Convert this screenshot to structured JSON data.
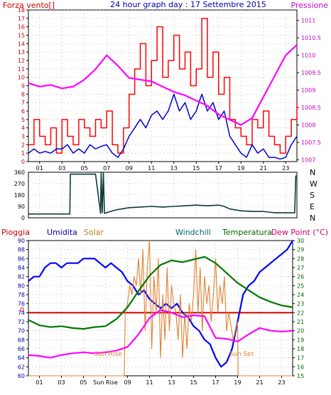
{
  "header": {
    "left_label": "Forza vento[]",
    "title": "24 hour graph day : 17 Settembre 2015",
    "right_label": "Pressione"
  },
  "colors": {
    "wind": "#ff0000",
    "wind_avg": "#0000cc",
    "pressure": "#ff00ff",
    "direction": "#0e3b3b",
    "rain": "#cc0000",
    "humidity": "#0000ff",
    "solar": "#e08030",
    "windchill": "#008800",
    "temperature": "#007700",
    "dewpoint": "#ff00ff",
    "axis_left": "#cc0000",
    "axis_right": "#cc00cc",
    "grid": "#999999",
    "frame": "#000000",
    "title": "#0000aa"
  },
  "x_ticks": [
    "01",
    "03",
    "05",
    "07",
    "09",
    "11",
    "13",
    "15",
    "17",
    "19",
    "21",
    "23"
  ],
  "bottom_x_ticks": [
    "01",
    "03",
    "05",
    "Sun Rise",
    "09",
    "11",
    "13",
    "15",
    "17",
    "19",
    "21",
    "23"
  ],
  "chart_data": [
    {
      "type": "line",
      "panel": "wind_pressure",
      "y_left_label": "Forza vento[]",
      "y_left_ticks": [
        "0",
        "1",
        "2",
        "3",
        "4",
        "5",
        "6",
        "7",
        "8",
        "9",
        "10",
        "11",
        "12",
        "13",
        "14",
        "15",
        "16",
        "17",
        "18"
      ],
      "y_left_range": [
        0,
        18
      ],
      "y_right_label": "Pressione",
      "y_right_ticks": [
        "1007",
        "1007.5",
        "1008",
        "1008.5",
        "1009",
        "1009.5",
        "1010",
        "1010.5",
        "1011"
      ],
      "y_right_range": [
        1006.95,
        1011.3
      ],
      "x_range": [
        0,
        24
      ],
      "series": [
        {
          "name": "Forza vento",
          "axis": "left",
          "style": "step",
          "x": [
            0,
            0.5,
            1,
            1.5,
            2,
            2.5,
            3,
            3.5,
            4,
            4.5,
            5,
            5.5,
            6,
            6.5,
            7,
            7.5,
            8,
            8.5,
            9,
            9.5,
            10,
            10.5,
            11,
            11.5,
            12,
            12.5,
            13,
            13.5,
            14,
            14.5,
            15,
            15.5,
            16,
            16.5,
            17,
            17.5,
            18,
            18.5,
            19,
            19.5,
            20,
            20.5,
            21,
            21.5,
            22,
            22.5,
            23,
            23.5,
            24
          ],
          "y": [
            2,
            5,
            3,
            2,
            4,
            1,
            5,
            3,
            2,
            5,
            4,
            3,
            5,
            4,
            6,
            2,
            1,
            4,
            8,
            11,
            14,
            9,
            12,
            16,
            10,
            12,
            15,
            11,
            13,
            9,
            11,
            17,
            10,
            13,
            8,
            10,
            5,
            4,
            3,
            2,
            5,
            4,
            6,
            3,
            2,
            1,
            3,
            5,
            7
          ]
        },
        {
          "name": "Vento medio",
          "axis": "left",
          "style": "line",
          "x": [
            0,
            0.5,
            1,
            1.5,
            2,
            2.5,
            3,
            3.5,
            4,
            4.5,
            5,
            5.5,
            6,
            6.5,
            7,
            7.5,
            8,
            8.5,
            9,
            9.5,
            10,
            10.5,
            11,
            11.5,
            12,
            12.5,
            13,
            13.5,
            14,
            14.5,
            15,
            15.5,
            16,
            16.5,
            17,
            17.5,
            18,
            18.5,
            19,
            19.5,
            20,
            20.5,
            21,
            21.5,
            22,
            22.5,
            23,
            23.5,
            24
          ],
          "y": [
            1,
            1.5,
            1,
            1.2,
            1,
            1.5,
            1.5,
            2,
            1,
            1.5,
            1,
            2,
            1.5,
            1.8,
            2,
            1,
            0.5,
            1.5,
            3,
            4,
            5,
            4,
            5.5,
            6,
            5,
            6,
            8,
            6,
            7,
            5,
            6,
            8,
            6,
            7,
            5,
            6,
            3,
            2,
            1,
            0.5,
            2,
            1,
            1.5,
            0.5,
            0.5,
            0.3,
            0.5,
            2,
            3
          ]
        },
        {
          "name": "Pressione",
          "axis": "right",
          "style": "line",
          "x": [
            0,
            1,
            2,
            3,
            4,
            5,
            6,
            7,
            8,
            9,
            10,
            11,
            12,
            13,
            14,
            15,
            16,
            17,
            18,
            19,
            20,
            21,
            22,
            23,
            24
          ],
          "y": [
            1009.2,
            1009.1,
            1009.15,
            1009.05,
            1009.1,
            1009.3,
            1009.6,
            1010.0,
            1009.7,
            1009.35,
            1009.3,
            1009.25,
            1009.1,
            1008.95,
            1008.85,
            1008.7,
            1008.55,
            1008.3,
            1008.15,
            1008.0,
            1008.2,
            1008.8,
            1009.4,
            1010.0,
            1010.3
          ]
        }
      ]
    },
    {
      "type": "line",
      "panel": "wind_direction",
      "y_left_ticks": [
        "0",
        "90",
        "180",
        "270",
        "360"
      ],
      "y_left_range": [
        0,
        360
      ],
      "y_right_ticks": [
        "N",
        "W",
        "S",
        "E",
        "N"
      ],
      "x_range": [
        0,
        24
      ],
      "series": [
        {
          "name": "Direzione vento",
          "axis": "left",
          "style": "line",
          "x": [
            0,
            1,
            2,
            3,
            3.7,
            3.75,
            4,
            5,
            5.5,
            6,
            6.45,
            6.5,
            6.6,
            6.7,
            6.8,
            7,
            7.5,
            8,
            9,
            10,
            11,
            12,
            13,
            14,
            15,
            16,
            17,
            17.5,
            18,
            19,
            20,
            21,
            22,
            23,
            23.8,
            23.9,
            24
          ],
          "y": [
            30,
            30,
            30,
            30,
            30,
            345,
            345,
            345,
            345,
            345,
            35,
            360,
            40,
            355,
            35,
            40,
            55,
            65,
            80,
            85,
            90,
            85,
            90,
            95,
            100,
            95,
            100,
            90,
            70,
            55,
            50,
            50,
            40,
            40,
            40,
            330,
            330
          ]
        }
      ]
    },
    {
      "type": "line",
      "panel": "humidity_temperature",
      "labels": {
        "rain": "Pioggia",
        "humidity": "Umidita",
        "solar": "Solar",
        "windchill": "Windchill",
        "temperature": "Temperatura",
        "dewpoint": "Dew Point (°C)"
      },
      "rain_value_label": "0",
      "sun_rise_label": "Sun Rise",
      "sun_set_label": "Sun Set",
      "y_left_ticks": [
        "60",
        "62",
        "64",
        "66",
        "68",
        "70",
        "72",
        "74",
        "76",
        "78",
        "80",
        "82",
        "84",
        "86",
        "88",
        "90"
      ],
      "y_left_range": [
        60,
        90
      ],
      "y_right_ticks": [
        "15",
        "16",
        "17",
        "18",
        "19",
        "20",
        "21",
        "22",
        "23",
        "24",
        "25",
        "26",
        "27",
        "28",
        "29",
        "30"
      ],
      "y_right_range": [
        15,
        30
      ],
      "x_range": [
        0,
        24
      ],
      "series": [
        {
          "name": "Umidita",
          "axis": "left",
          "x": [
            0,
            0.5,
            1,
            1.5,
            2,
            2.5,
            3,
            3.5,
            4,
            4.5,
            5,
            5.5,
            6,
            6.5,
            7,
            7.5,
            8,
            8.5,
            9,
            9.5,
            10,
            10.5,
            11,
            11.5,
            12,
            12.5,
            13,
            13.5,
            14,
            14.5,
            15,
            15.5,
            16,
            16.5,
            17,
            17.5,
            18,
            18.5,
            19,
            19.5,
            20,
            20.5,
            21,
            21.5,
            22,
            22.5,
            23,
            23.5,
            24
          ],
          "y": [
            81,
            82,
            82,
            84,
            85,
            85,
            84,
            85,
            85,
            85,
            86,
            86,
            86,
            85,
            84,
            85,
            84,
            83,
            81,
            80,
            78,
            79,
            77,
            76,
            75,
            76,
            75,
            76,
            74,
            73,
            71,
            70,
            68,
            67,
            64,
            62,
            63,
            66,
            72,
            78,
            80,
            81,
            83,
            84,
            85,
            86,
            87,
            88,
            90
          ]
        },
        {
          "name": "Solar",
          "axis": "right",
          "x": [
            0,
            8,
            8.7,
            8.8,
            9,
            9.2,
            9.4,
            9.6,
            9.8,
            10,
            10.2,
            10.4,
            10.6,
            10.8,
            11,
            11.2,
            11.4,
            11.6,
            11.8,
            12,
            12.2,
            12.4,
            12.6,
            12.8,
            13,
            13.2,
            13.4,
            13.6,
            13.8,
            14,
            14.2,
            14.4,
            14.6,
            14.8,
            15,
            15.2,
            15.4,
            15.6,
            15.8,
            16,
            16.2,
            16.4,
            16.6,
            16.8,
            17,
            17.2,
            17.4,
            17.6,
            17.8,
            18,
            18.2,
            18.6,
            19,
            19.05,
            24
          ],
          "y": [
            15,
            15,
            15,
            22,
            23,
            25,
            24,
            26,
            25,
            28,
            24,
            29,
            20,
            27,
            30,
            18,
            26,
            22,
            28,
            17,
            24,
            19,
            27,
            20,
            25,
            23,
            22,
            19,
            24,
            17,
            22,
            18,
            23,
            21,
            24,
            29,
            22,
            27,
            20,
            26,
            23,
            25,
            21,
            24,
            28,
            22,
            25,
            23,
            26,
            20,
            22,
            19,
            21,
            15,
            15
          ]
        },
        {
          "name": "Temperatura",
          "axis": "right",
          "x": [
            0,
            1,
            2,
            3,
            4,
            5,
            6,
            7,
            8,
            9,
            10,
            11,
            12,
            13,
            14,
            15,
            16,
            17,
            18,
            19,
            20,
            21,
            22,
            23,
            24
          ],
          "y": [
            21.2,
            20.6,
            20.4,
            20.5,
            20.3,
            20.2,
            20.4,
            20.5,
            21.3,
            22.6,
            24.4,
            26.1,
            27.3,
            27.8,
            27.6,
            27.9,
            28.2,
            27.5,
            26.4,
            25.3,
            24.5,
            23.7,
            23.2,
            22.8,
            22.6
          ]
        },
        {
          "name": "Dew Point",
          "axis": "right",
          "x": [
            0,
            1,
            2,
            3,
            4,
            5,
            6,
            7,
            8,
            9,
            10,
            11,
            12,
            13,
            14,
            15,
            16,
            17,
            18,
            19,
            20,
            21,
            22,
            23,
            24
          ],
          "y": [
            17.3,
            17.2,
            17.0,
            17.3,
            17.5,
            17.6,
            17.5,
            17.6,
            17.8,
            18.2,
            19.6,
            21.4,
            22.3,
            22.0,
            21.5,
            21.7,
            21.6,
            19.2,
            19.1,
            18.8,
            19.6,
            20.3,
            20.0,
            19.9,
            20.0
          ]
        }
      ]
    }
  ]
}
